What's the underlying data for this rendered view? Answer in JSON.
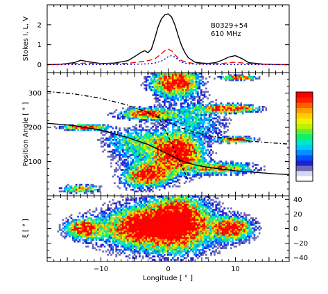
{
  "chart_data": [
    {
      "type": "line",
      "panel": "top",
      "ylabel": "Stokes I, L, V",
      "annotation_lines": [
        "B0329+54",
        "610 MHz"
      ],
      "xlim": [
        -18,
        18
      ],
      "ylim": [
        -0.4,
        3.0
      ],
      "yticks": [
        0,
        1,
        2
      ],
      "series": [
        {
          "key": "I",
          "color": "#000000",
          "dash": "solid",
          "x": [
            -18,
            -16,
            -14,
            -13,
            -12,
            -10,
            -8,
            -6,
            -5,
            -4,
            -3.5,
            -3,
            -2.5,
            -2,
            -1.5,
            -1,
            -0.5,
            0,
            0.5,
            1,
            1.5,
            2,
            2.5,
            3,
            4,
            5,
            6,
            7,
            8,
            9,
            10,
            11,
            12,
            14,
            16,
            18
          ],
          "y": [
            0.0,
            0.02,
            0.1,
            0.22,
            0.15,
            0.05,
            0.08,
            0.2,
            0.4,
            0.62,
            0.7,
            0.6,
            0.78,
            1.3,
            1.9,
            2.3,
            2.5,
            2.55,
            2.4,
            2.0,
            1.45,
            0.95,
            0.6,
            0.35,
            0.12,
            0.08,
            0.06,
            0.1,
            0.22,
            0.38,
            0.45,
            0.3,
            0.1,
            0.03,
            0.01,
            0.0
          ]
        },
        {
          "key": "L",
          "color": "#ff0000",
          "dash": "8,4",
          "x": [
            -18,
            -14,
            -12,
            -10,
            -6,
            -4,
            -3,
            -2,
            -1,
            -0.5,
            0,
            0.5,
            1,
            1.5,
            2,
            3,
            4,
            6,
            8,
            10,
            12,
            14,
            18
          ],
          "y": [
            0.0,
            0.05,
            0.08,
            0.05,
            0.06,
            0.15,
            0.2,
            0.28,
            0.55,
            0.7,
            0.78,
            0.7,
            0.5,
            0.33,
            0.2,
            0.1,
            0.05,
            0.04,
            0.06,
            0.12,
            0.05,
            0.02,
            0.0
          ]
        },
        {
          "key": "V",
          "color": "#0000cc",
          "dash": "2,3",
          "x": [
            -18,
            -6,
            -3,
            -2,
            -1,
            -0.5,
            0,
            0.5,
            1,
            1.5,
            2,
            3,
            6,
            18
          ],
          "y": [
            0.0,
            0.01,
            0.04,
            0.08,
            0.18,
            0.28,
            0.4,
            0.45,
            0.38,
            0.25,
            0.12,
            0.04,
            0.01,
            0.0
          ]
        }
      ]
    },
    {
      "type": "heatmap",
      "panel": "middle",
      "ylabel": "Position Angle [ ° ]",
      "xlim": [
        -18,
        18
      ],
      "ylim": [
        0,
        360
      ],
      "yticks": [
        100,
        200,
        300
      ],
      "clusters": [
        {
          "x": -12.5,
          "y": 200,
          "sx": 2.0,
          "sy": 5,
          "a": 0.95
        },
        {
          "x": -13,
          "y": 20,
          "sx": 1.6,
          "sy": 7,
          "a": 0.7
        },
        {
          "x": -3,
          "y": 60,
          "sx": 2.2,
          "sy": 20,
          "rot": -25,
          "a": 0.9
        },
        {
          "x": -3,
          "y": 240,
          "sx": 2.6,
          "sy": 10,
          "a": 0.95
        },
        {
          "x": 1,
          "y": 330,
          "sx": 2.2,
          "sy": 25,
          "rot": -30,
          "a": 1.0
        },
        {
          "x": 1.5,
          "y": 130,
          "sx": 2.0,
          "sy": 30,
          "rot": -25,
          "a": 1.0
        },
        {
          "x": 9,
          "y": 255,
          "sx": 2.6,
          "sy": 7,
          "a": 0.95
        },
        {
          "x": 10,
          "y": 165,
          "sx": 1.6,
          "sy": 5,
          "a": 0.95
        },
        {
          "x": 10.5,
          "y": 345,
          "sx": 1.5,
          "sy": 4,
          "a": 0.9
        },
        {
          "x": 8,
          "y": 80,
          "sx": 3.0,
          "sy": 10,
          "a": 0.7
        },
        {
          "x": -5,
          "y": 160,
          "sx": 3.0,
          "sy": 25,
          "a": 0.35
        },
        {
          "x": 4,
          "y": 220,
          "sx": 3.0,
          "sy": 40,
          "a": 0.3
        },
        {
          "x": -1,
          "y": 100,
          "sx": 4.0,
          "sy": 40,
          "a": 0.3
        }
      ],
      "curves": [
        {
          "key": "rvm-solid",
          "color": "#000000",
          "dash": "solid",
          "x": [
            -18,
            -14,
            -10,
            -6,
            -3,
            0,
            2,
            4,
            6,
            8,
            10,
            12,
            14,
            16,
            18
          ],
          "y": [
            212,
            205,
            192,
            170,
            150,
            122,
            102,
            90,
            83,
            78,
            73,
            70,
            67,
            64,
            62
          ]
        },
        {
          "key": "rvm-dashdot",
          "color": "#000000",
          "dash": "6,3,1.5,3",
          "x": [
            -18,
            -14,
            -10,
            -6,
            -3,
            0,
            2,
            4,
            6,
            8,
            10,
            12,
            14,
            16,
            18
          ],
          "y": [
            305,
            298,
            285,
            265,
            243,
            215,
            198,
            185,
            176,
            170,
            165,
            160,
            157,
            154,
            151
          ]
        },
        {
          "key": "transition-dashed",
          "color": "#000000",
          "dash": "4,3",
          "x": [
            -1.5,
            0,
            1.5,
            3
          ],
          "y": [
            235,
            175,
            110,
            45
          ]
        }
      ]
    },
    {
      "type": "heatmap",
      "panel": "bottom",
      "ylabel": "ξ [ ° ]",
      "xlabel": "Longitude [ ° ]",
      "xlim": [
        -18,
        18
      ],
      "ylim": [
        -45,
        45
      ],
      "yticks": [
        -40,
        -20,
        0,
        20,
        40
      ],
      "xticks": [
        -10,
        0,
        10
      ],
      "clusters": [
        {
          "x": -12.5,
          "y": 0,
          "sx": 1.6,
          "sy": 8,
          "a": 0.95
        },
        {
          "x": -3.5,
          "y": 2,
          "sx": 3.2,
          "sy": 14,
          "a": 1.0
        },
        {
          "x": 1.5,
          "y": 10,
          "sx": 2.6,
          "sy": 22,
          "a": 1.0
        },
        {
          "x": 9.5,
          "y": 0,
          "sx": 1.8,
          "sy": 9,
          "a": 0.95
        },
        {
          "x": -1,
          "y": 0,
          "sx": 6.5,
          "sy": 25,
          "a": 0.35
        }
      ]
    }
  ],
  "colorbar": {
    "colors": [
      "#ffffff",
      "#d8d8ec",
      "#6a6ab8",
      "#2020d0",
      "#0050ff",
      "#0090ff",
      "#00c8ff",
      "#00e8c0",
      "#10f070",
      "#60f030",
      "#c0f000",
      "#f0f000",
      "#ffd000",
      "#ffa000",
      "#ff6000",
      "#ff2000",
      "#ff0000"
    ]
  }
}
